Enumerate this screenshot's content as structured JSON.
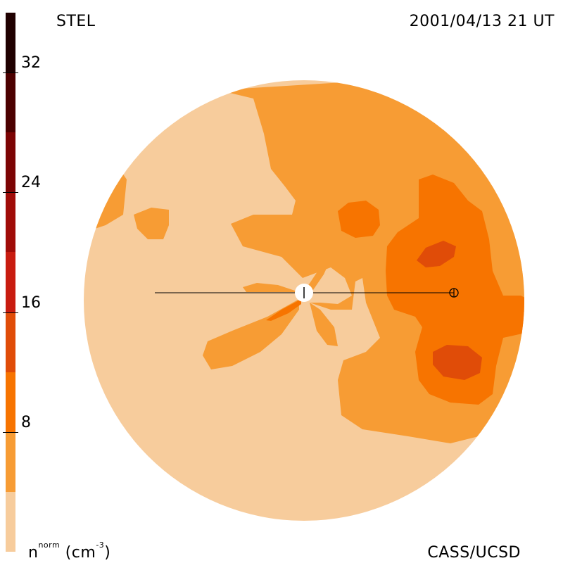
{
  "header": {
    "observatory": "STEL",
    "timestamp": "2001/04/13 21 UT"
  },
  "footer": {
    "credit": "CASS/UCSD"
  },
  "colorbar": {
    "unit_base": "n",
    "unit_sup": "norm",
    "unit_paren": "(cm",
    "unit_exp": "-3",
    "unit_close": ")",
    "range": [
      0,
      36
    ],
    "ticks": [
      {
        "value": 8,
        "label": "8"
      },
      {
        "value": 16,
        "label": "16"
      },
      {
        "value": 24,
        "label": "24"
      },
      {
        "value": 32,
        "label": "32"
      }
    ],
    "levels": [
      {
        "from": 0,
        "to": 4,
        "color": "#f7cc9c"
      },
      {
        "from": 4,
        "to": 8,
        "color": "#f79c34"
      },
      {
        "from": 8,
        "to": 12,
        "color": "#f77400"
      },
      {
        "from": 12,
        "to": 16,
        "color": "#e04c08"
      },
      {
        "from": 16,
        "to": 20,
        "color": "#c81c10"
      },
      {
        "from": 20,
        "to": 24,
        "color": "#a00c08"
      },
      {
        "from": 24,
        "to": 28,
        "color": "#7c0404"
      },
      {
        "from": 28,
        "to": 32,
        "color": "#4c0000"
      },
      {
        "from": 32,
        "to": 36,
        "color": "#200000"
      }
    ]
  },
  "map": {
    "background_color": "#f7cc9c",
    "sun_marker": "sun",
    "earth_marker": "earth"
  }
}
